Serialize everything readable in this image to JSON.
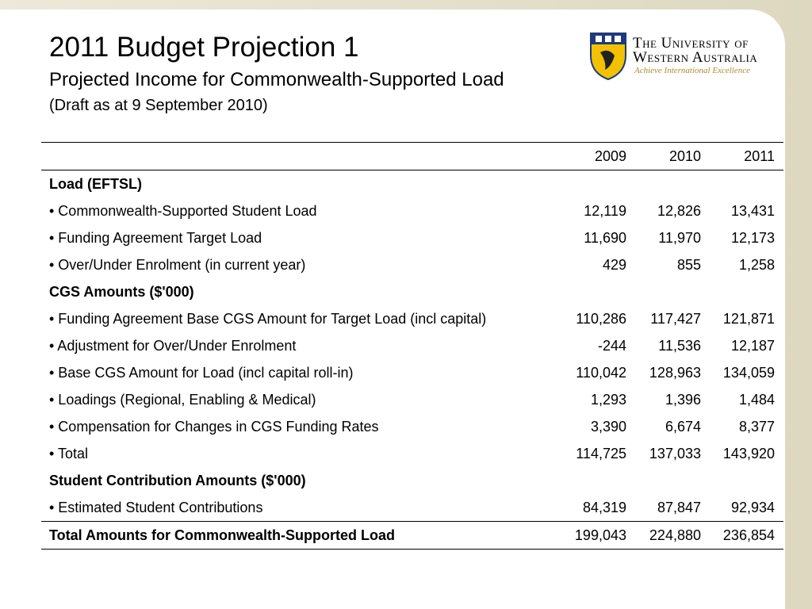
{
  "header": {
    "title": "2011 Budget Projection 1",
    "subtitle": "Projected Income for Commonwealth-Supported Load",
    "note": "(Draft as at 9 September 2010)"
  },
  "logo": {
    "name_line1": "The University of",
    "name_line2": "Western Australia",
    "tagline": "Achieve International Excellence"
  },
  "table": {
    "columns": [
      "2009",
      "2010",
      "2011"
    ],
    "rows": [
      {
        "label": "Load (EFTSL)",
        "bold": true
      },
      {
        "label": "• Commonwealth-Supported Student Load",
        "values": [
          "12,119",
          "12,826",
          "13,431"
        ]
      },
      {
        "label": "• Funding Agreement Target Load",
        "values": [
          "11,690",
          "11,970",
          "12,173"
        ]
      },
      {
        "label": "• Over/Under Enrolment (in current year)",
        "values": [
          "429",
          "855",
          "1,258"
        ]
      },
      {
        "label": "CGS Amounts ($'000)",
        "bold": true
      },
      {
        "label": "• Funding Agreement Base CGS Amount for Target Load (incl capital)",
        "values": [
          "110,286",
          "117,427",
          "121,871"
        ]
      },
      {
        "label": "• Adjustment for Over/Under Enrolment",
        "values": [
          "-244",
          "11,536",
          "12,187"
        ]
      },
      {
        "label": "• Base CGS Amount for Load (incl capital roll-in)",
        "values": [
          "110,042",
          "128,963",
          "134,059"
        ]
      },
      {
        "label": "• Loadings (Regional, Enabling & Medical)",
        "values": [
          "1,293",
          "1,396",
          "1,484"
        ]
      },
      {
        "label": "• Compensation for Changes in CGS Funding Rates",
        "values": [
          "3,390",
          "6,674",
          "8,377"
        ]
      },
      {
        "label": "• Total",
        "values": [
          "114,725",
          "137,033",
          "143,920"
        ]
      },
      {
        "label": "Student Contribution Amounts ($'000)",
        "bold": true
      },
      {
        "label": "• Estimated Student Contributions",
        "values": [
          "84,319",
          "87,847",
          "92,934"
        ]
      },
      {
        "label": "Total Amounts for Commonwealth-Supported Load",
        "bold": true,
        "total": true,
        "values": [
          "199,043",
          "224,880",
          "236,854"
        ]
      }
    ]
  }
}
